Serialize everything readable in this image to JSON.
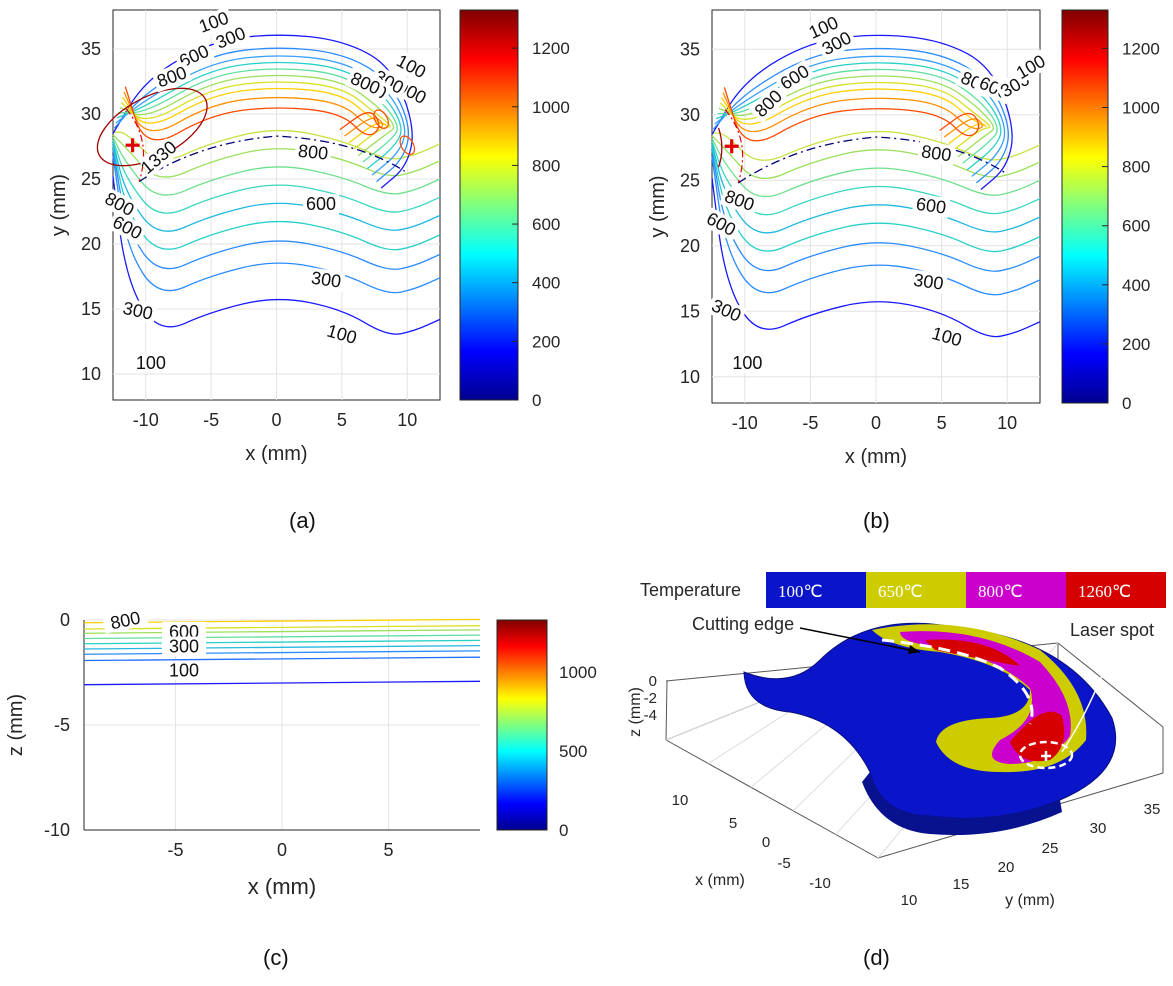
{
  "panels": {
    "a": {
      "label": "(a)"
    },
    "b": {
      "label": "(b)"
    },
    "c": {
      "label": "(c)"
    },
    "d": {
      "label": "(d)"
    }
  },
  "colors": {
    "contour_100": "#1a1aff",
    "contour_300": "#2a8cff",
    "contour_600": "#26d0c8",
    "contour_800": "#9ae05a",
    "contour_1000": "#ffd000",
    "contour_1200": "#ff4a00",
    "contour_1330": "#a00000",
    "laser_marker": "#e00000",
    "temp_100": "#0a14c8",
    "temp_650": "#cccc00",
    "temp_800": "#cc00cc",
    "temp_1260": "#d60000"
  },
  "chart_data": [
    {
      "id": "a",
      "type": "contour",
      "xlabel": "x (mm)",
      "ylabel": "y (mm)",
      "xlim": [
        -12.5,
        12.5
      ],
      "ylim": [
        8,
        38
      ],
      "xticks": [
        "-10",
        "-5",
        "0",
        "5",
        "10"
      ],
      "yticks": [
        "10",
        "15",
        "20",
        "25",
        "30",
        "35"
      ],
      "grid": true,
      "colorbar": {
        "range": [
          0,
          1330
        ],
        "ticks": [
          "0",
          "200",
          "400",
          "600",
          "800",
          "1000",
          "1200"
        ]
      },
      "contour_labels": [
        "100",
        "300",
        "600",
        "800",
        "1000",
        "100",
        "300",
        "600",
        "800",
        "1330",
        "800",
        "600",
        "800",
        "600",
        "300",
        "300",
        "100",
        "100"
      ],
      "laser_spot": {
        "x": -11,
        "y": 27.6
      }
    },
    {
      "id": "b",
      "type": "contour",
      "xlabel": "x (mm)",
      "ylabel": "y (mm)",
      "xlim": [
        -12.5,
        12.5
      ],
      "ylim": [
        8,
        38
      ],
      "xticks": [
        "-10",
        "-5",
        "0",
        "5",
        "10"
      ],
      "yticks": [
        "10",
        "15",
        "20",
        "25",
        "30",
        "35"
      ],
      "grid": true,
      "colorbar": {
        "range": [
          0,
          1330
        ],
        "ticks": [
          "0",
          "200",
          "400",
          "600",
          "800",
          "1000",
          "1200"
        ]
      },
      "contour_labels": [
        "100",
        "300",
        "600",
        "800",
        "800",
        "600",
        "300",
        "100",
        "800",
        "800",
        "600",
        "600",
        "300",
        "300",
        "100",
        "100"
      ],
      "laser_spot": {
        "x": -11,
        "y": 27.6
      }
    },
    {
      "id": "c",
      "type": "contour",
      "xlabel": "x  (mm)",
      "ylabel": "z (mm)",
      "xlim": [
        -9.3,
        9.3
      ],
      "ylim": [
        -10,
        0
      ],
      "xticks": [
        "-5",
        "0",
        "5"
      ],
      "yticks": [
        "-10",
        "-5",
        "0"
      ],
      "grid": true,
      "colorbar": {
        "range": [
          0,
          1330
        ],
        "ticks": [
          "0",
          "500",
          "1000"
        ]
      },
      "contour_labels": [
        "800",
        "600",
        "300",
        "100"
      ]
    },
    {
      "id": "d",
      "type": "surface3d",
      "xlabel": "x (mm)",
      "ylabel": "y (mm)",
      "zlabel": "z (mm)",
      "xticks": [
        "10",
        "5",
        "0",
        "-5",
        "-10"
      ],
      "yticks": [
        "10",
        "15",
        "20",
        "25",
        "30",
        "35"
      ],
      "zticks": [
        "0",
        "-2",
        "-4"
      ],
      "legend_title": "Temperature",
      "legend": [
        "100℃",
        "650℃",
        "800℃",
        "1260℃"
      ],
      "annotations": [
        "Cutting edge",
        "Laser spot"
      ]
    }
  ]
}
